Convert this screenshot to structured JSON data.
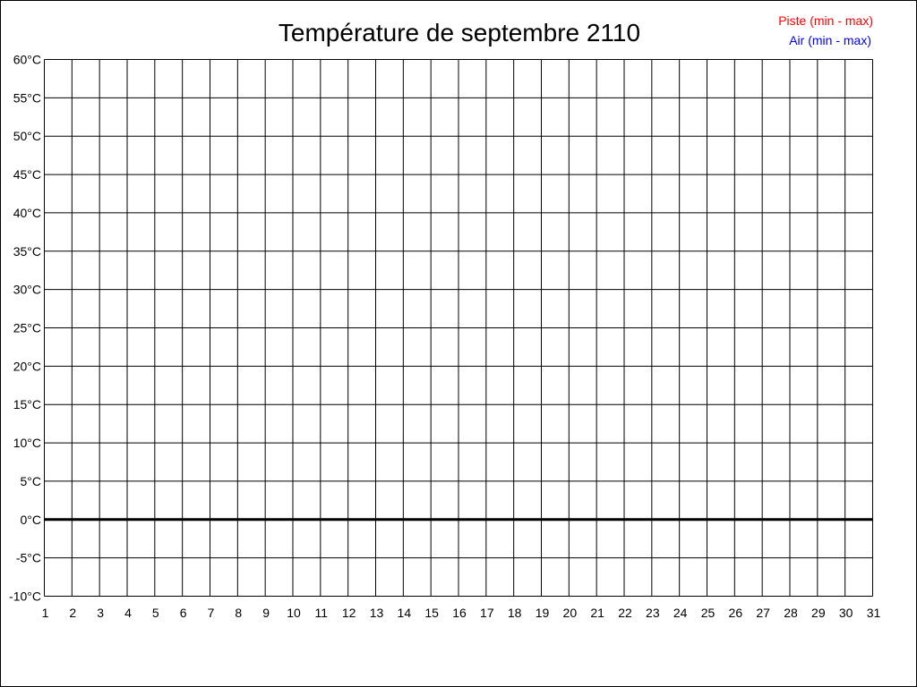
{
  "chart_data": {
    "type": "line",
    "title": "Température de septembre 2110",
    "xlabel": "",
    "ylabel": "",
    "x_ticks": [
      "1",
      "2",
      "3",
      "4",
      "5",
      "6",
      "7",
      "8",
      "9",
      "10",
      "11",
      "12",
      "13",
      "14",
      "15",
      "16",
      "17",
      "18",
      "19",
      "20",
      "21",
      "22",
      "23",
      "24",
      "25",
      "26",
      "27",
      "28",
      "29",
      "30",
      "31"
    ],
    "y_ticks": [
      "60°C",
      "55°C",
      "50°C",
      "45°C",
      "40°C",
      "35°C",
      "30°C",
      "25°C",
      "20°C",
      "15°C",
      "10°C",
      "5°C",
      "0°C",
      "-5°C",
      "-10°C"
    ],
    "xlim": [
      1,
      31
    ],
    "ylim": [
      -10,
      60
    ],
    "y_step": 5,
    "grid": true,
    "legend_position": "top-right",
    "series": [
      {
        "name": "Piste (min - max)",
        "color": "#ff0000",
        "values": []
      },
      {
        "name": "Air (min - max)",
        "color": "#0000ff",
        "values": []
      }
    ],
    "zero_line_color": "#000000"
  }
}
